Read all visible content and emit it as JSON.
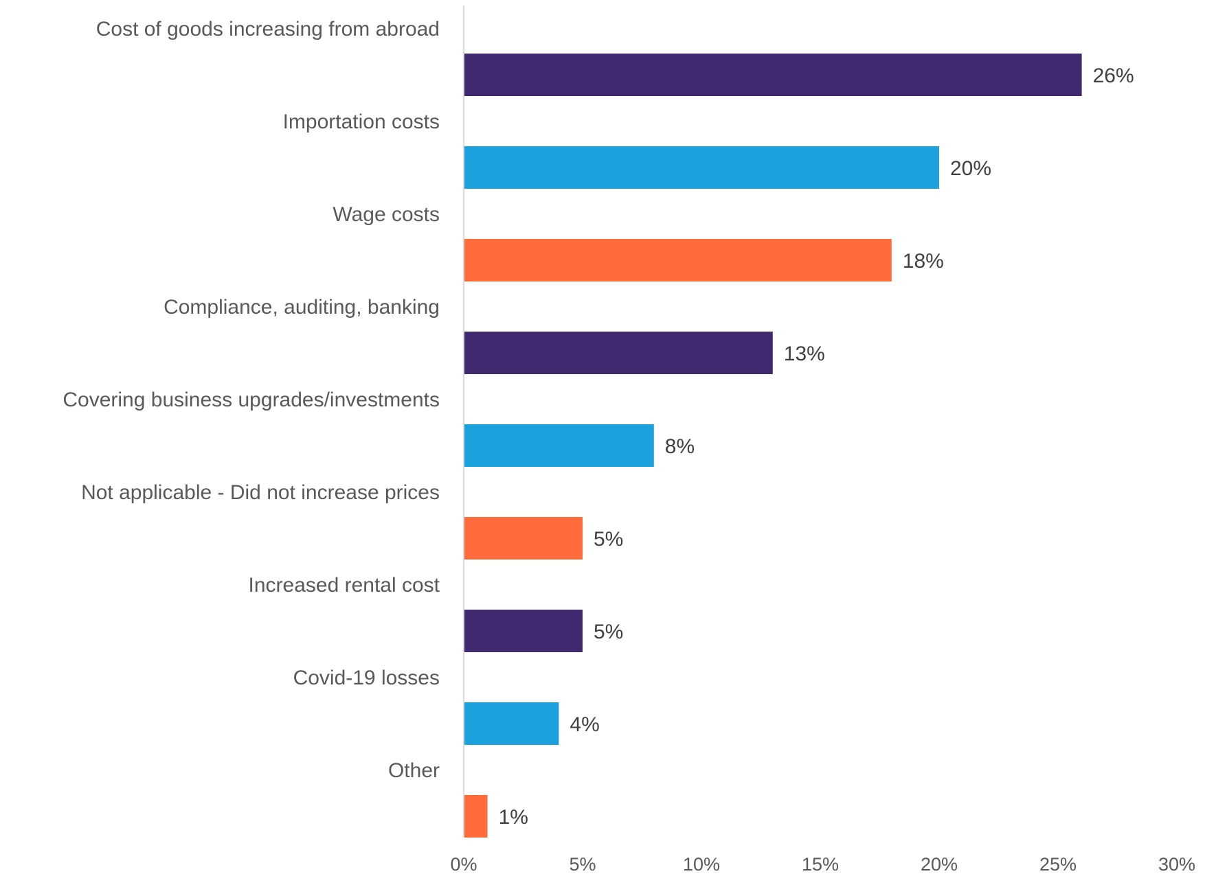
{
  "chart_data": {
    "type": "bar",
    "orientation": "horizontal",
    "title": "",
    "xlabel": "",
    "ylabel": "",
    "categories": [
      "Cost of goods increasing from abroad",
      "Importation costs",
      "Wage costs",
      "Compliance, auditing, banking",
      "Covering business upgrades/investments",
      "Not applicable - Did not increase prices",
      "Increased rental cost",
      "Covid-19 losses",
      "Other"
    ],
    "values": [
      26,
      20,
      18,
      13,
      8,
      5,
      5,
      4,
      1
    ],
    "value_labels": [
      "26%",
      "20%",
      "18%",
      "13%",
      "8%",
      "5%",
      "5%",
      "4%",
      "1%"
    ],
    "bar_colors": [
      "#41296F",
      "#1BA1DE",
      "#FF6B3A",
      "#41296F",
      "#1BA1DE",
      "#FF6B3A",
      "#41296F",
      "#1BA1DE",
      "#FF6B3A"
    ],
    "xlim": [
      0,
      30
    ],
    "x_ticks": [
      0,
      5,
      10,
      15,
      20,
      25,
      30
    ],
    "x_tick_labels": [
      "0%",
      "5%",
      "10%",
      "15%",
      "20%",
      "25%",
      "30%"
    ],
    "grid": false,
    "legend": "none"
  }
}
